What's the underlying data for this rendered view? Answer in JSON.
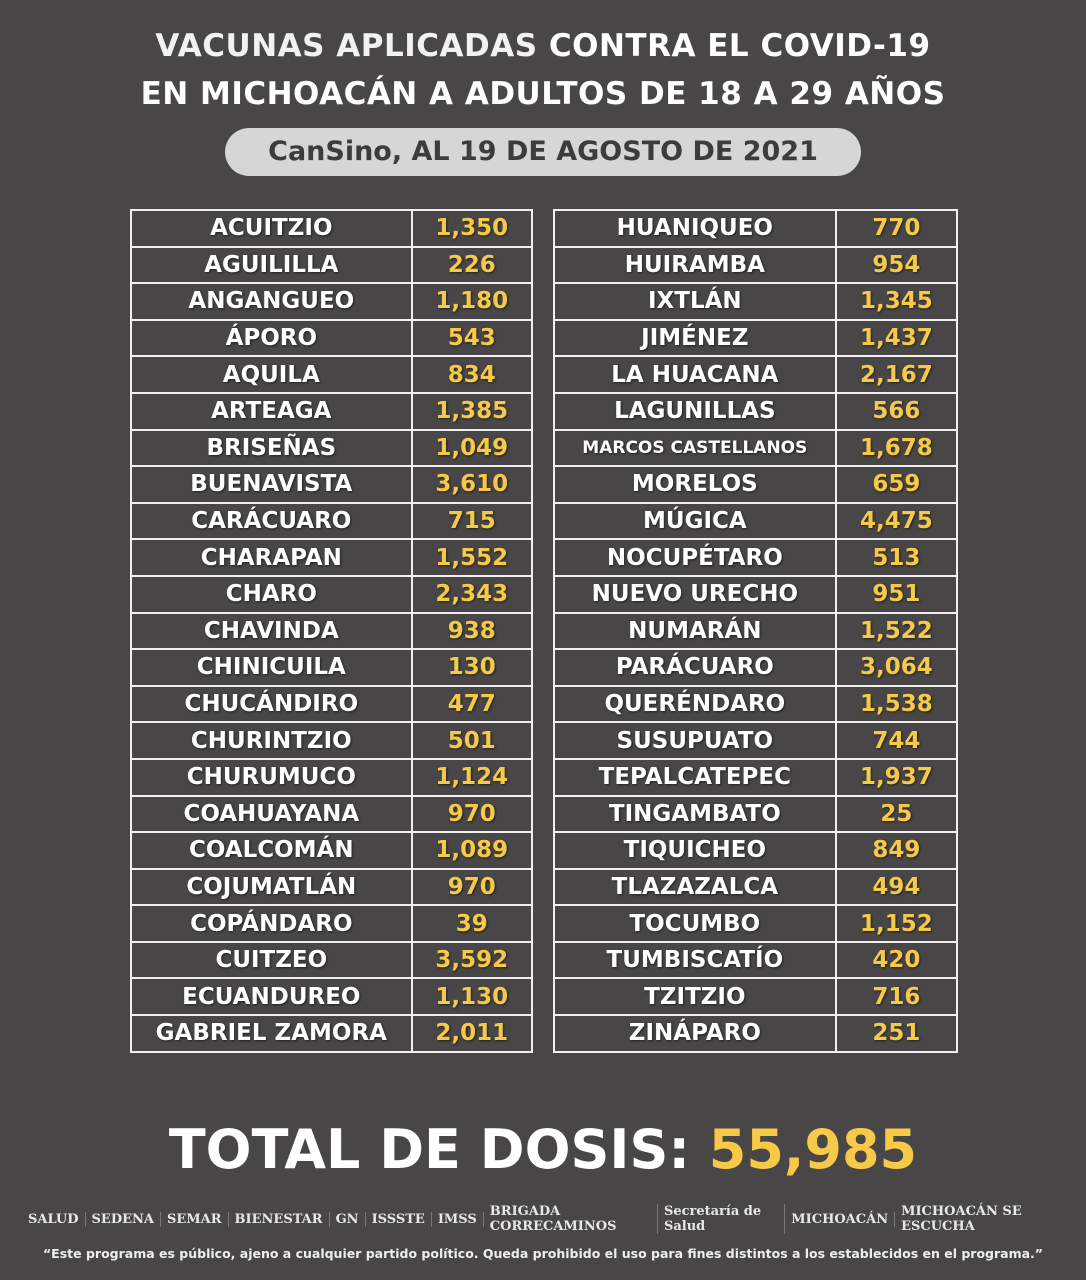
{
  "header": {
    "line1_a": "VACUNAS APLICADAS ",
    "line1_b": "CONTRA EL COVID-19",
    "line2": "EN MICHOACÁN A ADULTOS DE 18 A 29 AÑOS",
    "subtitle": "CanSino, AL 19 DE AGOSTO DE 2021"
  },
  "table_left": [
    {
      "name": "ACUITZIO",
      "value": "1,350"
    },
    {
      "name": "AGUILILLA",
      "value": "226"
    },
    {
      "name": "ANGANGUEO",
      "value": "1,180"
    },
    {
      "name": "ÁPORO",
      "value": "543"
    },
    {
      "name": "AQUILA",
      "value": "834"
    },
    {
      "name": "ARTEAGA",
      "value": "1,385"
    },
    {
      "name": "BRISEÑAS",
      "value": "1,049"
    },
    {
      "name": "BUENAVISTA",
      "value": "3,610"
    },
    {
      "name": "CARÁCUARO",
      "value": "715"
    },
    {
      "name": "CHARAPAN",
      "value": "1,552"
    },
    {
      "name": "CHARO",
      "value": "2,343"
    },
    {
      "name": "CHAVINDA",
      "value": "938"
    },
    {
      "name": "CHINICUILA",
      "value": "130"
    },
    {
      "name": "CHUCÁNDIRO",
      "value": "477"
    },
    {
      "name": "CHURINTZIO",
      "value": "501"
    },
    {
      "name": "CHURUMUCO",
      "value": "1,124"
    },
    {
      "name": "COAHUAYANA",
      "value": "970"
    },
    {
      "name": "COALCOMÁN",
      "value": "1,089"
    },
    {
      "name": "COJUMATLÁN",
      "value": "970"
    },
    {
      "name": "COPÁNDARO",
      "value": "39"
    },
    {
      "name": "CUITZEO",
      "value": "3,592"
    },
    {
      "name": "ECUANDUREO",
      "value": "1,130"
    },
    {
      "name": "GABRIEL ZAMORA",
      "value": "2,011"
    }
  ],
  "table_right": [
    {
      "name": "HUANIQUEO",
      "value": "770"
    },
    {
      "name": "HUIRAMBA",
      "value": "954"
    },
    {
      "name": "IXTLÁN",
      "value": "1,345"
    },
    {
      "name": "JIMÉNEZ",
      "value": "1,437"
    },
    {
      "name": "LA HUACANA",
      "value": "2,167"
    },
    {
      "name": "LAGUNILLAS",
      "value": "566"
    },
    {
      "name": "MARCOS CASTELLANOS",
      "value": "1,678"
    },
    {
      "name": "MORELOS",
      "value": "659"
    },
    {
      "name": "MÚGICA",
      "value": "4,475"
    },
    {
      "name": "NOCUPÉTARO",
      "value": "513"
    },
    {
      "name": "NUEVO URECHO",
      "value": "951"
    },
    {
      "name": "NUMARÁN",
      "value": "1,522"
    },
    {
      "name": "PARÁCUARO",
      "value": "3,064"
    },
    {
      "name": "QUERÉNDARO",
      "value": "1,538"
    },
    {
      "name": "SUSUPUATO",
      "value": "744"
    },
    {
      "name": "TEPALCATEPEC",
      "value": "1,937"
    },
    {
      "name": "TINGAMBATO",
      "value": "25"
    },
    {
      "name": "TIQUICHEO",
      "value": "849"
    },
    {
      "name": "TLAZAZALCA",
      "value": "494"
    },
    {
      "name": "TOCUMBO",
      "value": "1,152"
    },
    {
      "name": "TUMBISCATÍO",
      "value": "420"
    },
    {
      "name": "TZITZIO",
      "value": "716"
    },
    {
      "name": "ZINÁPARO",
      "value": "251"
    }
  ],
  "total": {
    "label": "TOTAL DE DOSIS: ",
    "value": "55,985"
  },
  "logos": [
    "SALUD",
    "SEDENA",
    "SEMAR",
    "BIENESTAR",
    "GN",
    "ISSSTE",
    "IMSS",
    "BRIGADA CORRECAMINOS",
    "Secretaría de Salud",
    "MICHOACÁN",
    "MICHOACÁN SE ESCUCHA"
  ],
  "disclaimer": "“Este programa es público, ajeno a cualquier partido político. Queda prohibido el uso para fines distintos a los establecidos en el programa.”",
  "colors": {
    "background": "#484646",
    "accent": "#f7c948",
    "pill": "#d6d6d6"
  }
}
